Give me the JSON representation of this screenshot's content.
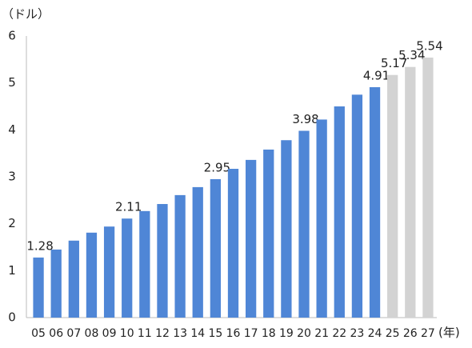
{
  "chart_data": {
    "type": "bar",
    "y_unit": "（ドル）",
    "x_unit": "(年)",
    "categories": [
      "05",
      "06",
      "07",
      "08",
      "09",
      "10",
      "11",
      "12",
      "13",
      "14",
      "15",
      "16",
      "17",
      "18",
      "19",
      "20",
      "21",
      "22",
      "23",
      "24",
      "25",
      "26",
      "27"
    ],
    "values": [
      1.28,
      1.45,
      1.64,
      1.81,
      1.94,
      2.11,
      2.27,
      2.42,
      2.61,
      2.78,
      2.95,
      3.17,
      3.36,
      3.58,
      3.78,
      3.98,
      4.22,
      4.5,
      4.75,
      4.91,
      5.17,
      5.34,
      5.54
    ],
    "value_labels": [
      "1.28",
      null,
      null,
      null,
      null,
      "2.11",
      null,
      null,
      null,
      null,
      "2.95",
      null,
      null,
      null,
      null,
      "3.98",
      null,
      null,
      null,
      "4.91",
      "5.17",
      "5.34",
      "5.54"
    ],
    "colors": [
      "#4f86d6",
      "#4f86d6",
      "#4f86d6",
      "#4f86d6",
      "#4f86d6",
      "#4f86d6",
      "#4f86d6",
      "#4f86d6",
      "#4f86d6",
      "#4f86d6",
      "#4f86d6",
      "#4f86d6",
      "#4f86d6",
      "#4f86d6",
      "#4f86d6",
      "#4f86d6",
      "#4f86d6",
      "#4f86d6",
      "#4f86d6",
      "#4f86d6",
      "#d3d3d3",
      "#d3d3d3",
      "#d3d3d3"
    ],
    "ylim": [
      0,
      6
    ],
    "yticks": [
      0,
      1,
      2,
      3,
      4,
      5,
      6
    ],
    "grid": false
  }
}
